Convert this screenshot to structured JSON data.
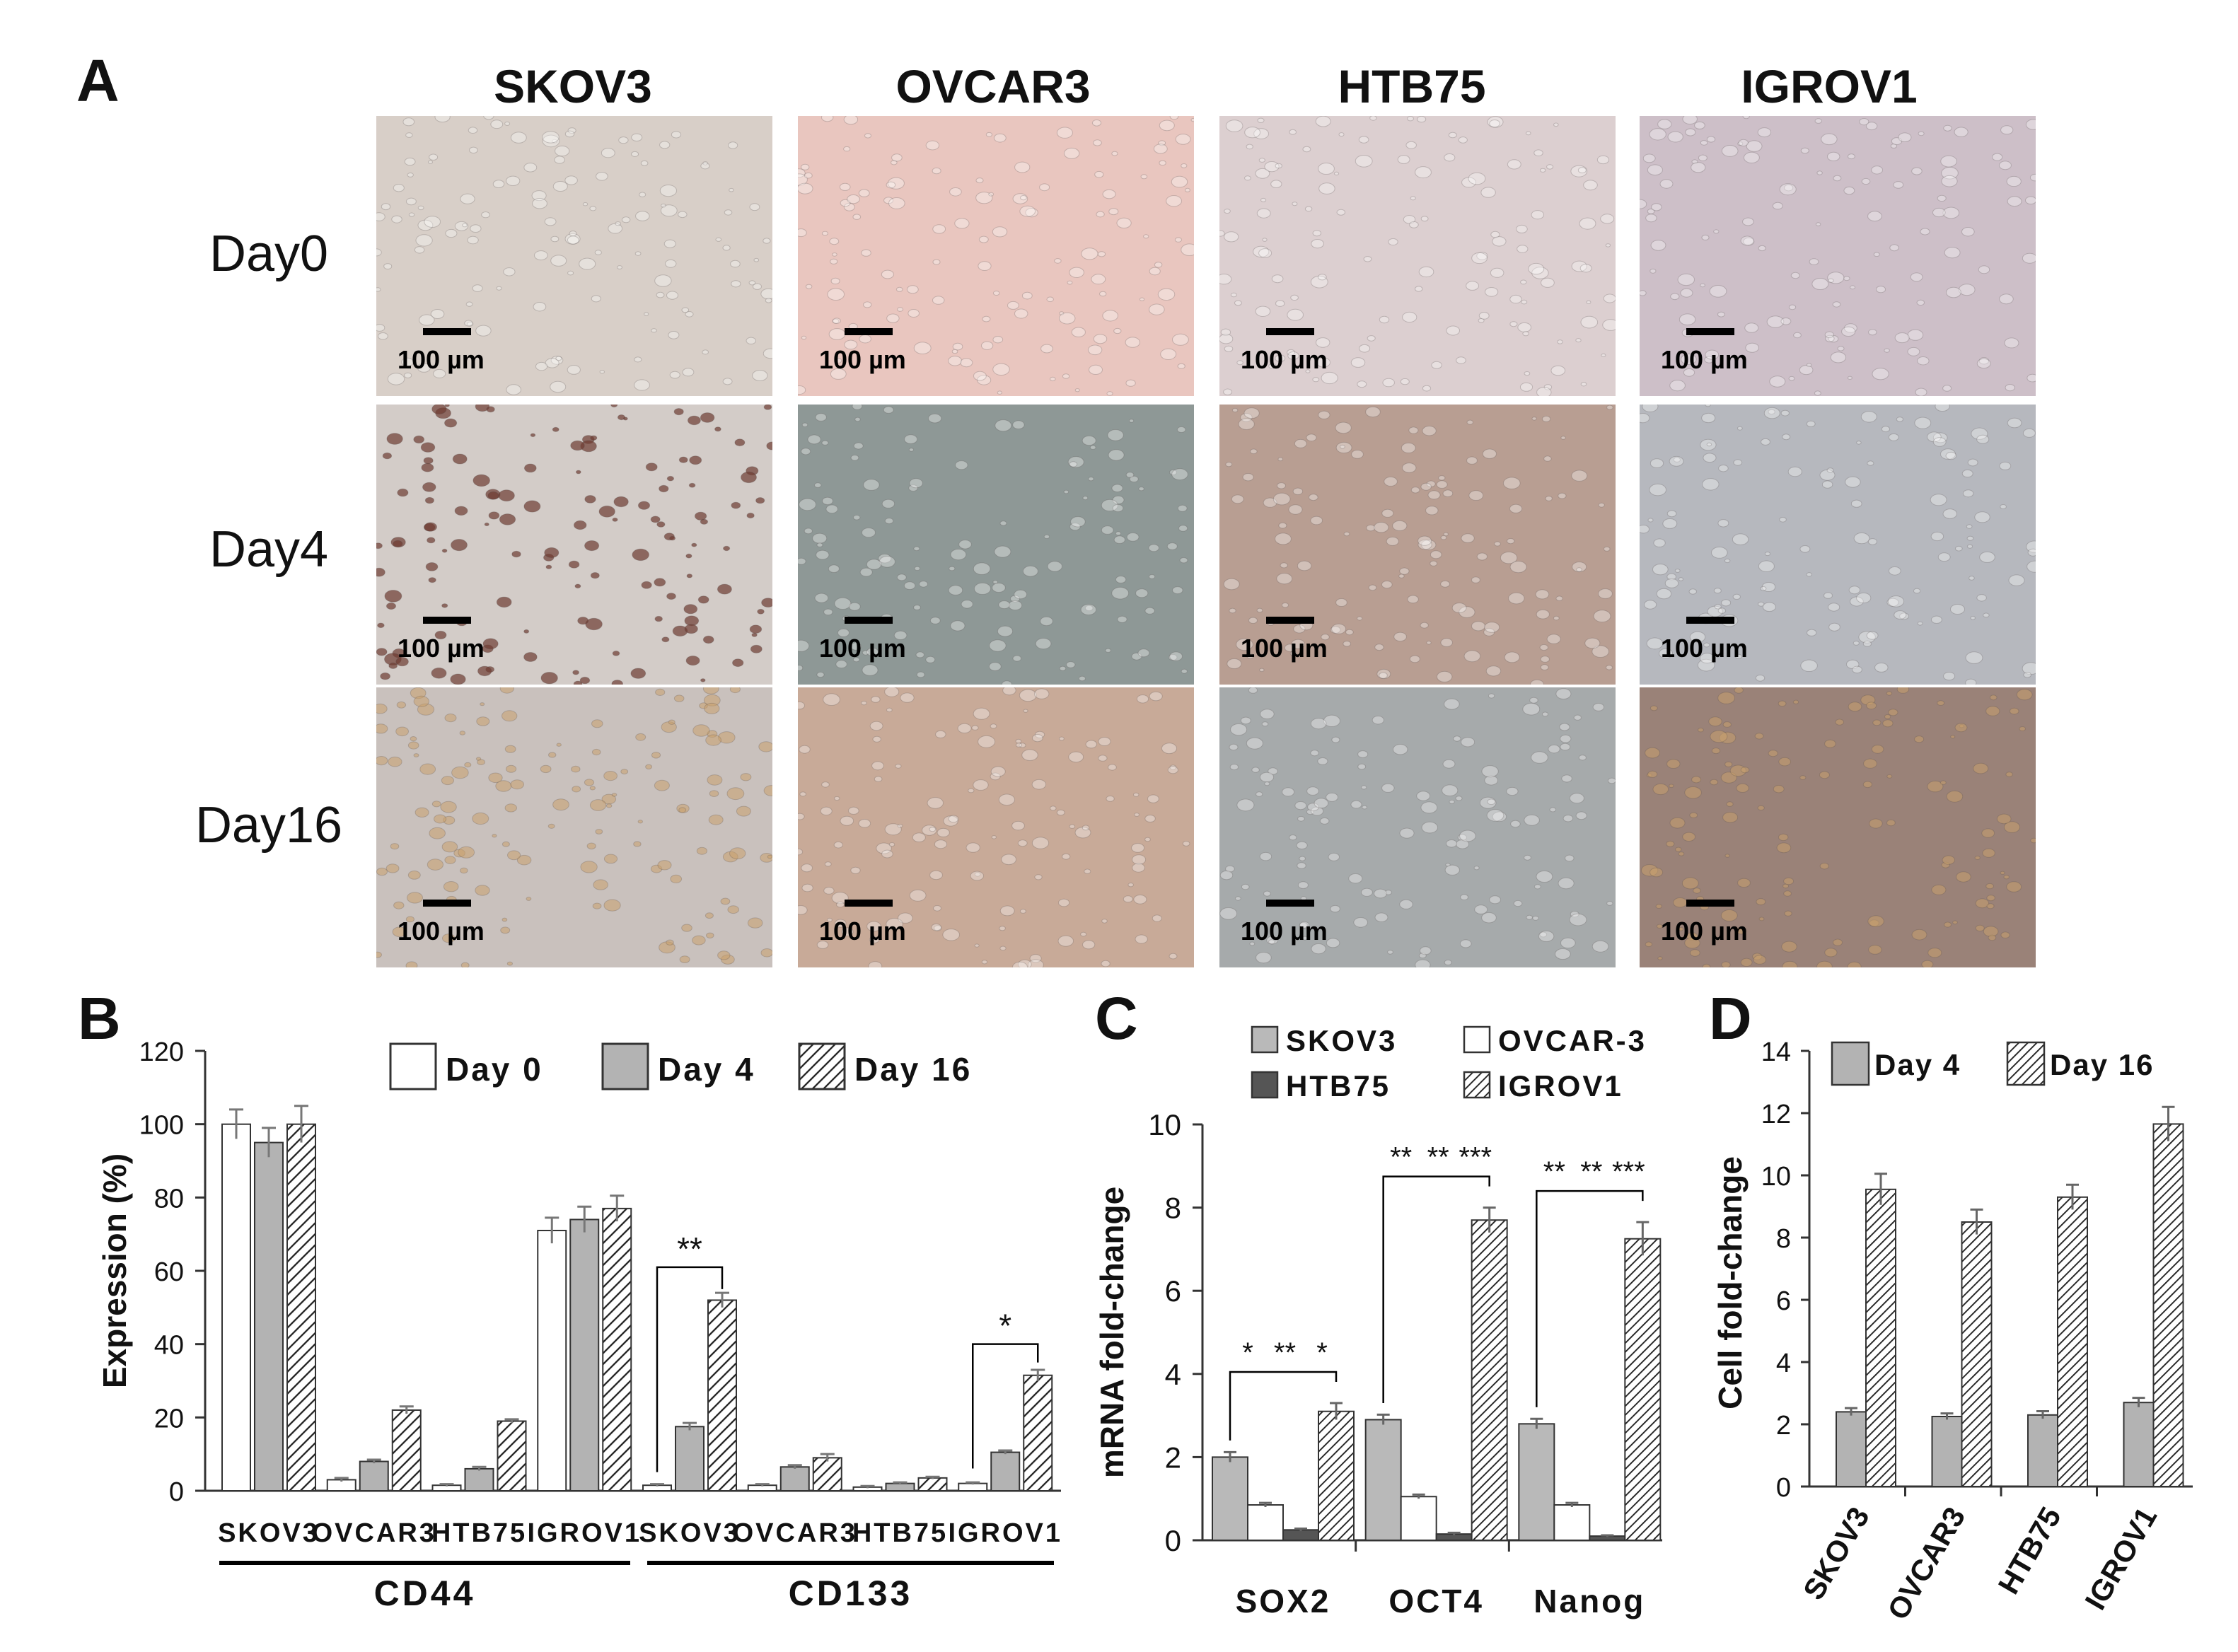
{
  "panel_a": {
    "letter": "A",
    "cell_lines": [
      "SKOV3",
      "OVCAR3",
      "HTB75",
      "IGROV1"
    ],
    "days": [
      "Day0",
      "Day4",
      "Day16"
    ],
    "scale_bar": "100 µm",
    "image_colors": [
      [
        "#d8cfc8",
        "#e9c6bf",
        "#dccfd0",
        "#cdbfc8"
      ],
      [
        "#d3ccc8",
        "#8e9896",
        "#b89e92",
        "#b6b8be"
      ],
      [
        "#c9c1bd",
        "#c8aa98",
        "#a6aaab",
        "#9a8278"
      ]
    ]
  },
  "panel_b": {
    "letter": "B",
    "legend": [
      "Day 0",
      "Day 4",
      "Day 16"
    ],
    "group_labels": [
      "CD44",
      "CD133"
    ],
    "significance": [
      "**",
      "*"
    ]
  },
  "panel_c": {
    "letter": "C",
    "legend": [
      "SKOV3",
      "OVCAR-3",
      "HTB75",
      "IGROV1"
    ],
    "significance": [
      [
        "*",
        "**",
        "*"
      ],
      [
        "**",
        "**",
        "***"
      ],
      [
        "**",
        "**",
        "***"
      ]
    ]
  },
  "panel_d": {
    "letter": "D",
    "legend": [
      "Day 4",
      "Day 16"
    ]
  },
  "chart_data": [
    {
      "type": "bar",
      "panel": "B",
      "categories": [
        "SKOV3",
        "OVCAR3",
        "HTB75",
        "IGROV1",
        "SKOV3",
        "OVCAR3",
        "HTB75",
        "IGROV1"
      ],
      "series": [
        {
          "name": "Day 0",
          "values": [
            100,
            3,
            1.5,
            71,
            1.5,
            1.5,
            1,
            2
          ],
          "errors": [
            4,
            0.5,
            0.3,
            3.5,
            0.3,
            0.3,
            0.3,
            0.3
          ],
          "fill": "white"
        },
        {
          "name": "Day 4",
          "values": [
            95,
            8,
            6,
            74,
            17.5,
            6.5,
            2,
            10.5
          ],
          "errors": [
            4,
            0.5,
            0.5,
            3.5,
            1,
            0.5,
            0.3,
            0.5
          ],
          "fill": "gray"
        },
        {
          "name": "Day 16",
          "values": [
            100,
            22,
            19,
            77,
            52,
            9,
            3.5,
            31.5
          ],
          "errors": [
            5,
            1,
            0.5,
            3.5,
            2,
            1,
            0.3,
            1.5
          ],
          "fill": "hatch"
        }
      ],
      "ylabel": "Expression (%)",
      "ylim": [
        0,
        120
      ],
      "yticks": [
        0,
        20,
        40,
        60,
        80,
        100,
        120
      ],
      "groups": [
        "CD44",
        "CD133"
      ]
    },
    {
      "type": "bar",
      "panel": "C",
      "categories": [
        "SOX2",
        "OCT4",
        "Nanog"
      ],
      "series": [
        {
          "name": "SKOV3",
          "values": [
            2.0,
            2.9,
            2.8
          ],
          "errors": [
            0.12,
            0.12,
            0.12
          ],
          "fill": "lightgray"
        },
        {
          "name": "OVCAR-3",
          "values": [
            0.85,
            1.05,
            0.85
          ],
          "errors": [
            0.05,
            0.05,
            0.05
          ],
          "fill": "white"
        },
        {
          "name": "HTB75",
          "values": [
            0.25,
            0.15,
            0.1
          ],
          "errors": [
            0.03,
            0.03,
            0.02
          ],
          "fill": "darkgray"
        },
        {
          "name": "IGROV1",
          "values": [
            3.1,
            7.7,
            7.25
          ],
          "errors": [
            0.2,
            0.3,
            0.4
          ],
          "fill": "hatch"
        }
      ],
      "ylabel": "mRNA fold-change",
      "ylim": [
        0,
        10
      ],
      "yticks": [
        0,
        2,
        4,
        6,
        8,
        10
      ]
    },
    {
      "type": "bar",
      "panel": "D",
      "categories": [
        "SKOV3",
        "OVCAR3",
        "HTB75",
        "IGROV1"
      ],
      "series": [
        {
          "name": "Day 4",
          "values": [
            2.4,
            2.25,
            2.3,
            2.7
          ],
          "errors": [
            0.12,
            0.1,
            0.12,
            0.15
          ],
          "fill": "gray"
        },
        {
          "name": "Day 16",
          "values": [
            9.55,
            8.5,
            9.3,
            11.65
          ],
          "errors": [
            0.5,
            0.4,
            0.4,
            0.55
          ],
          "fill": "hatch"
        }
      ],
      "ylabel": "Cell fold-change",
      "ylim": [
        0,
        14
      ],
      "yticks": [
        0,
        2,
        4,
        6,
        8,
        10,
        12,
        14
      ]
    }
  ]
}
